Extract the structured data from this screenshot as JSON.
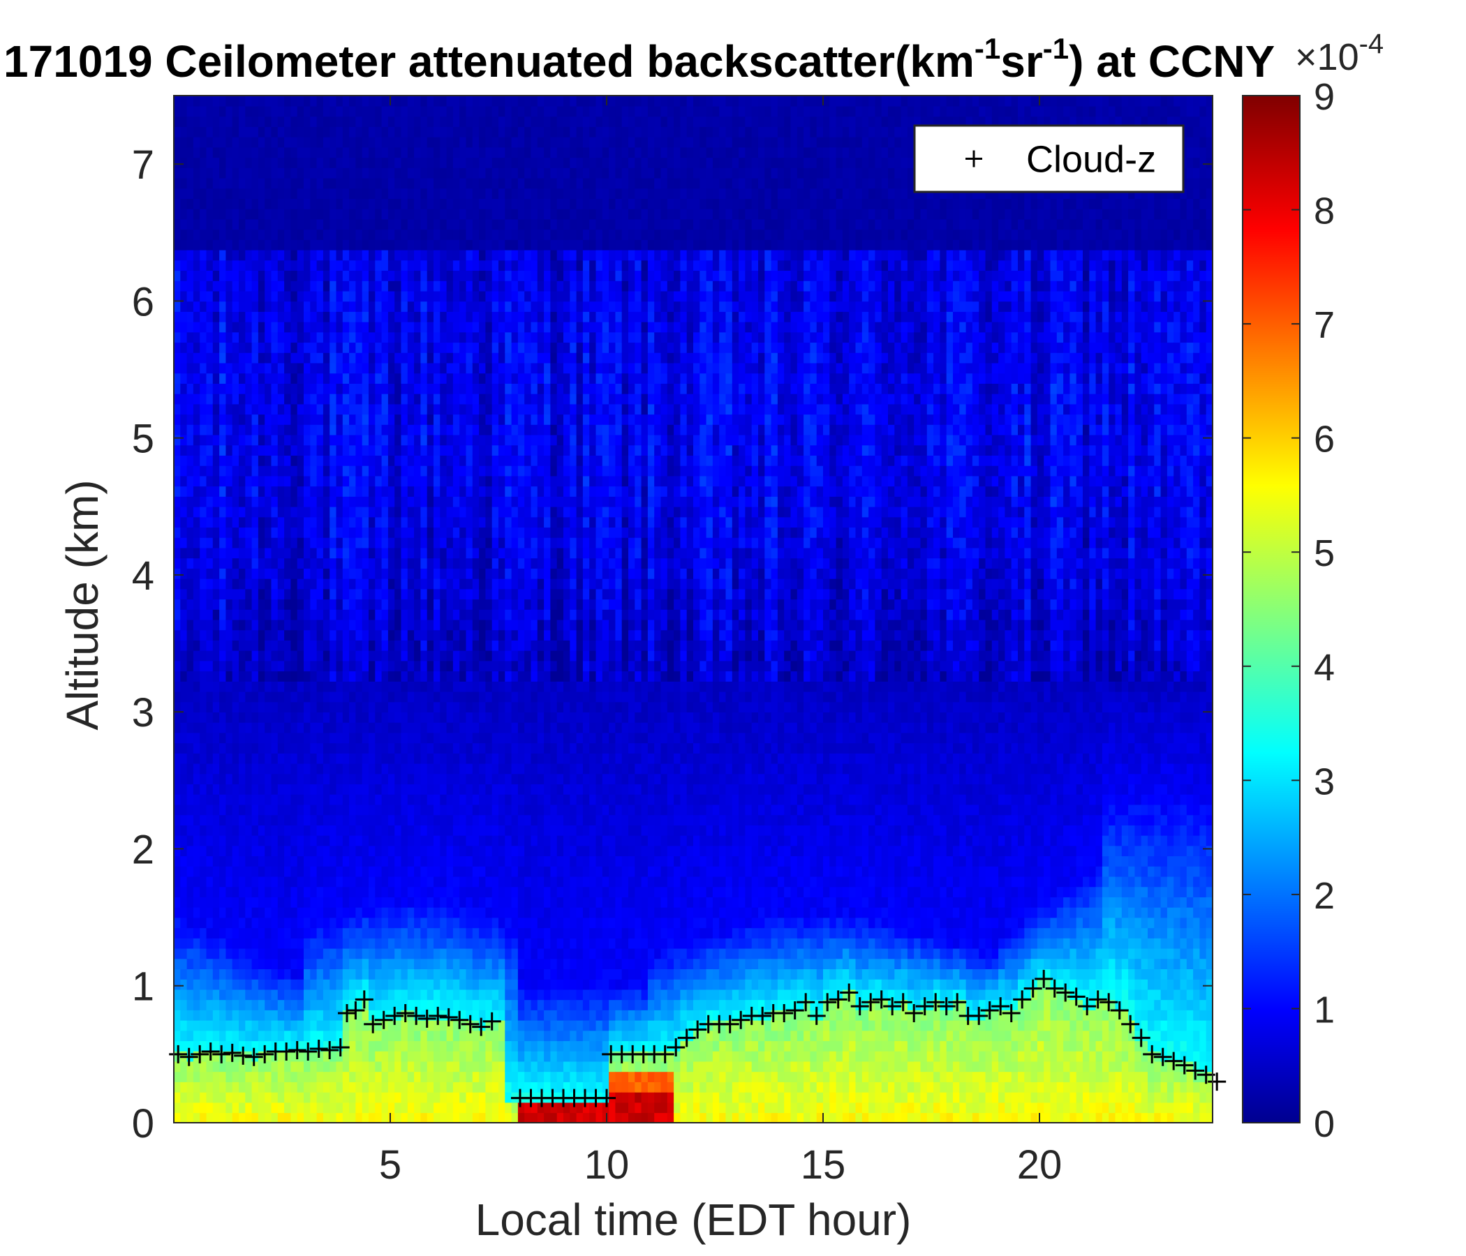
{
  "chart_data": {
    "type": "heatmap",
    "title": "171019 Ceilometer attenuated backscatter(km-1sr-1) at CCNY",
    "title_parts": {
      "prefix": "171019 Ceilometer attenuated backscatter(km",
      "sup1": "-1",
      "mid": "sr",
      "sup2": "-1",
      "suffix": ") at CCNY"
    },
    "xlabel": "Local time (EDT hour)",
    "ylabel": "Altitude (km)",
    "xlim": [
      0,
      24
    ],
    "ylim": [
      0,
      7.5
    ],
    "xticks": [
      5,
      10,
      15,
      20
    ],
    "yticks": [
      0,
      1,
      2,
      3,
      4,
      5,
      6,
      7
    ],
    "colormap": "jet",
    "colorbar": {
      "min": 0,
      "max": 9,
      "ticks": [
        0,
        1,
        2,
        3,
        4,
        5,
        6,
        7,
        8,
        9
      ],
      "multiplier_base": "×10",
      "multiplier_exp": "-4"
    },
    "legend": {
      "placement": "top-right",
      "entries": [
        {
          "marker": "+",
          "label": "Cloud-z",
          "color": "#000000"
        }
      ]
    },
    "cloud_z": {
      "name": "Cloud-z",
      "marker": "+",
      "x": [
        0.1,
        0.35,
        0.6,
        0.85,
        1.1,
        1.35,
        1.6,
        1.85,
        2.1,
        2.35,
        2.6,
        2.85,
        3.1,
        3.35,
        3.6,
        3.85,
        4.0,
        4.2,
        4.4,
        4.6,
        4.85,
        5.1,
        5.35,
        5.6,
        5.85,
        6.1,
        6.35,
        6.6,
        6.85,
        7.1,
        7.35,
        8.0,
        8.25,
        8.5,
        8.75,
        9.0,
        9.25,
        9.5,
        9.75,
        10.0,
        10.1,
        10.35,
        10.6,
        10.85,
        11.1,
        11.35,
        11.6,
        11.85,
        12.1,
        12.35,
        12.6,
        12.85,
        13.1,
        13.35,
        13.6,
        13.85,
        14.1,
        14.35,
        14.6,
        14.85,
        15.1,
        15.35,
        15.6,
        15.85,
        16.1,
        16.35,
        16.6,
        16.85,
        17.1,
        17.35,
        17.6,
        17.85,
        18.1,
        18.35,
        18.6,
        18.85,
        19.1,
        19.35,
        19.6,
        19.85,
        20.1,
        20.35,
        20.6,
        20.85,
        21.1,
        21.35,
        21.6,
        21.85,
        22.1,
        22.35,
        22.6,
        22.85,
        23.1,
        23.35,
        23.6,
        23.85,
        24.1
      ],
      "y": [
        0.5,
        0.48,
        0.5,
        0.52,
        0.5,
        0.51,
        0.49,
        0.48,
        0.5,
        0.52,
        0.52,
        0.53,
        0.52,
        0.54,
        0.53,
        0.55,
        0.8,
        0.82,
        0.9,
        0.72,
        0.75,
        0.78,
        0.8,
        0.78,
        0.76,
        0.78,
        0.77,
        0.75,
        0.72,
        0.7,
        0.74,
        0.18,
        0.18,
        0.18,
        0.18,
        0.18,
        0.18,
        0.18,
        0.18,
        0.18,
        0.5,
        0.5,
        0.5,
        0.5,
        0.5,
        0.5,
        0.55,
        0.62,
        0.68,
        0.72,
        0.72,
        0.72,
        0.75,
        0.78,
        0.78,
        0.8,
        0.8,
        0.82,
        0.88,
        0.78,
        0.88,
        0.9,
        0.95,
        0.85,
        0.88,
        0.9,
        0.85,
        0.88,
        0.8,
        0.85,
        0.88,
        0.85,
        0.88,
        0.78,
        0.78,
        0.82,
        0.85,
        0.8,
        0.9,
        0.98,
        1.05,
        0.98,
        0.95,
        0.92,
        0.85,
        0.9,
        0.88,
        0.82,
        0.72,
        0.62,
        0.5,
        0.48,
        0.45,
        0.42,
        0.38,
        0.35,
        0.3
      ]
    }
  }
}
